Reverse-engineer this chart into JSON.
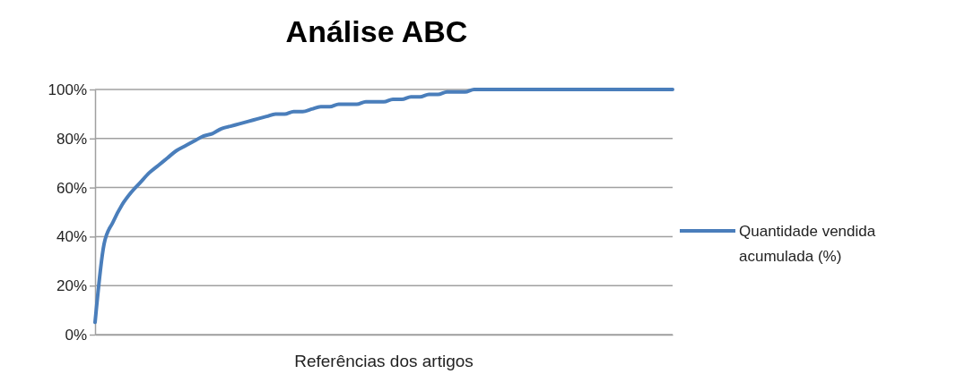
{
  "chart_data": {
    "type": "line",
    "title": "Análise ABC",
    "xlabel": "Referências dos artigos",
    "categories": [
      null,
      null,
      null,
      null,
      null,
      null,
      null,
      null,
      null,
      null,
      null,
      null,
      null,
      null,
      null,
      null,
      null,
      null,
      null,
      null,
      null,
      null,
      null,
      null,
      null,
      null,
      null,
      null,
      null,
      null,
      null,
      null,
      null,
      null,
      null,
      null,
      null,
      null,
      null,
      null,
      null,
      null,
      null,
      null,
      null,
      null,
      null,
      null,
      null,
      null,
      null,
      null,
      null,
      null,
      null,
      null,
      null,
      null,
      null,
      null,
      null,
      null,
      null,
      null,
      null
    ],
    "series": [
      {
        "name": "Quantidade vendida acumulada (%)",
        "color": "#4a7ebb",
        "values": [
          5,
          37,
          46,
          53,
          58,
          62,
          66,
          69,
          72,
          75,
          77,
          79,
          81,
          82,
          84,
          85,
          86,
          87,
          88,
          89,
          90,
          90,
          91,
          91,
          92,
          93,
          93,
          94,
          94,
          94,
          95,
          95,
          95,
          96,
          96,
          97,
          97,
          98,
          98,
          99,
          99,
          99,
          100,
          100,
          100,
          100,
          100,
          100,
          100,
          100,
          100,
          100,
          100,
          100,
          100,
          100,
          100,
          100,
          100,
          100,
          100,
          100,
          100,
          100,
          100
        ]
      }
    ],
    "ylim": [
      0,
      100
    ],
    "yticks": [
      {
        "value": 0,
        "label": "0%"
      },
      {
        "value": 20,
        "label": "20%"
      },
      {
        "value": 40,
        "label": "40%"
      },
      {
        "value": 60,
        "label": "60%"
      },
      {
        "value": 80,
        "label": "80%"
      },
      {
        "value": 100,
        "label": "100%"
      }
    ],
    "grid": "y",
    "legend": "right",
    "marker": "none",
    "line_style": "solid"
  }
}
